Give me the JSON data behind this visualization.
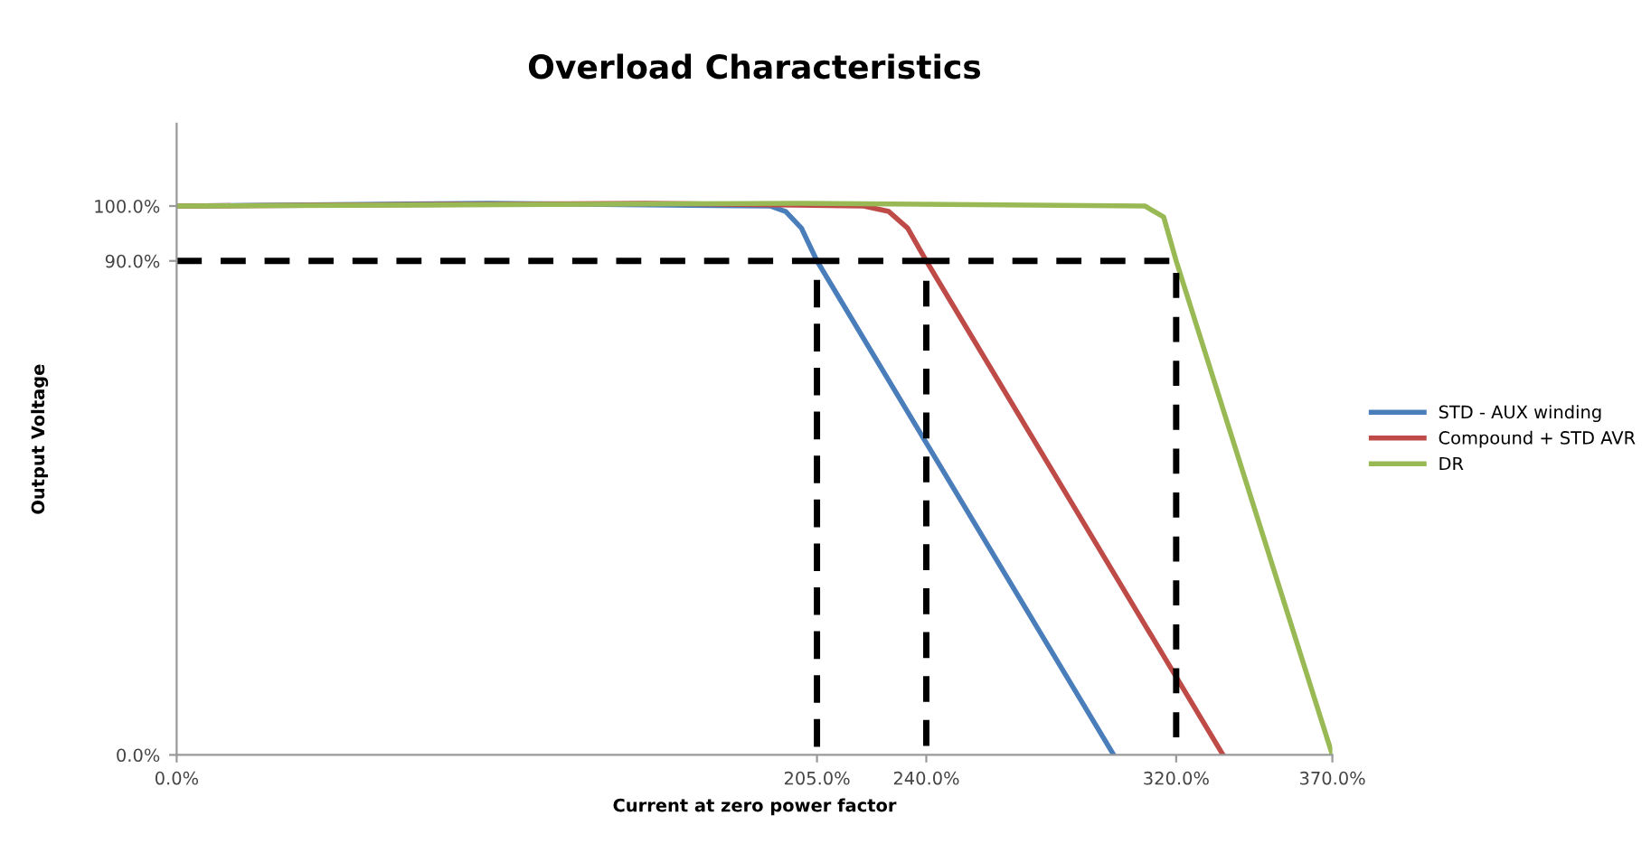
{
  "chart_data": {
    "type": "line",
    "title": "Overload Characteristics",
    "xlabel": "Current at zero power factor",
    "ylabel": "Output Voltage",
    "xlim": [
      0,
      370
    ],
    "ylim": [
      0,
      115
    ],
    "xticks": [
      {
        "value": 0,
        "label": "0.0%"
      },
      {
        "value": 205,
        "label": "205.0%"
      },
      {
        "value": 240,
        "label": "240.0%"
      },
      {
        "value": 320,
        "label": "320.0%"
      },
      {
        "value": 370,
        "label": "370.0%"
      }
    ],
    "yticks": [
      {
        "value": 0,
        "label": "0.0%"
      },
      {
        "value": 90,
        "label": "90.0%"
      },
      {
        "value": 100,
        "label": "100.0%"
      }
    ],
    "grid": false,
    "legend": "right",
    "marker": "none",
    "series": [
      {
        "name": "STD - AUX winding",
        "color": "#4a7ebb",
        "x": [
          0,
          100,
          190,
          195,
          200,
          205,
          300
        ],
        "values": [
          100,
          100.5,
          100,
          99,
          96,
          90,
          0
        ]
      },
      {
        "name": "Compound + STD AVR",
        "color": "#be4b48",
        "x": [
          0,
          150,
          220,
          228,
          234,
          240,
          335
        ],
        "values": [
          100,
          100.5,
          100,
          99,
          96,
          90,
          0
        ]
      },
      {
        "name": "DR",
        "color": "#98b954",
        "x": [
          0,
          200,
          310,
          316,
          320,
          370
        ],
        "values": [
          100,
          100.5,
          100,
          98,
          90,
          0
        ]
      },
      {
        "color": "#000000",
        "line_style": "dashed",
        "x": [
          0,
          205,
          205,
          205,
          240,
          240,
          240,
          320,
          320
        ],
        "values": [
          90,
          90,
          0,
          90,
          90,
          0,
          90,
          90,
          0
        ]
      }
    ]
  }
}
